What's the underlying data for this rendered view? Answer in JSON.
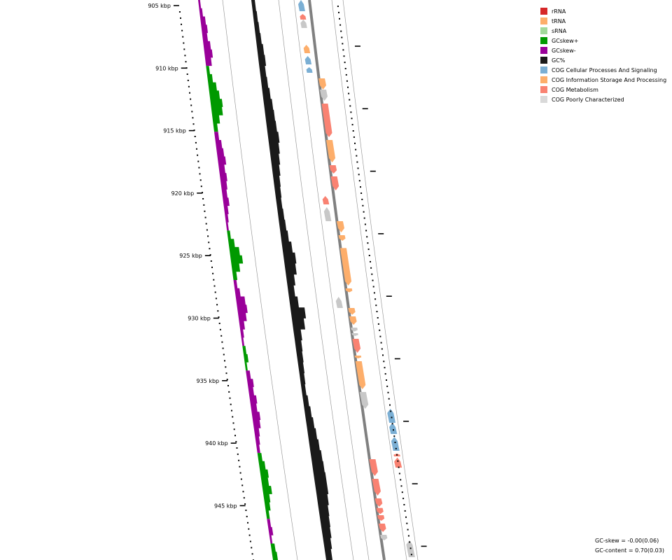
{
  "legend": [
    {
      "label": "rRNA",
      "color": "#d62728"
    },
    {
      "label": "tRNA",
      "color": "#fdae6b"
    },
    {
      "label": "sRNA",
      "color": "#a1d99b"
    },
    {
      "label": "GCskew+",
      "color": "#009900"
    },
    {
      "label": "GCskew-",
      "color": "#990099"
    },
    {
      "label": "GC%",
      "color": "#1a1a1a"
    },
    {
      "label": "COG Cellular Processes And Signaling",
      "color": "#7bafd4"
    },
    {
      "label": "COG Information Storage And Processing",
      "color": "#fdae6b"
    },
    {
      "label": "COG Metabolism",
      "color": "#f98272"
    },
    {
      "label": "COG Poorly Characterized",
      "color": "#d9d9d9"
    }
  ],
  "ticks": [
    "905 kbp",
    "910 kbp",
    "915 kbp",
    "920 kbp",
    "925 kbp",
    "930 kbp",
    "935 kbp",
    "940 kbp",
    "945 kbp"
  ],
  "stats": {
    "gc_skew": "GC-skew = -0.00(0.06)",
    "gc_content": "GC-content = 0.70(0.03)"
  },
  "tracks": {
    "gc_skew_segments": [
      {
        "sign": "-",
        "values": [
          0.2,
          0.3,
          0.5,
          0.6,
          0.5,
          0.7,
          0.8,
          0.6
        ]
      },
      {
        "sign": "+",
        "values": [
          0.3,
          0.5,
          0.8,
          1.0,
          1.2,
          1.1,
          0.7,
          0.4
        ]
      },
      {
        "sign": "-",
        "values": [
          0.4,
          0.6,
          0.7,
          0.8,
          0.6,
          0.7,
          0.6,
          0.5,
          0.6,
          0.4,
          0.3,
          0.2
        ]
      },
      {
        "sign": "+",
        "values": [
          0.3,
          0.6,
          1.0,
          1.2,
          0.8,
          0.4
        ]
      },
      {
        "sign": "-",
        "values": [
          0.3,
          0.5,
          0.9,
          1.0,
          0.8,
          0.5,
          0.3,
          0.2
        ]
      },
      {
        "sign": "+",
        "values": [
          0.3,
          0.4,
          0.2
        ]
      },
      {
        "sign": "-",
        "values": [
          0.4,
          0.6,
          0.5,
          0.7,
          0.6,
          0.8,
          0.7,
          0.5,
          0.4,
          0.3
        ]
      },
      {
        "sign": "+",
        "values": [
          0.4,
          0.6,
          0.8,
          0.7,
          0.9,
          0.6,
          0.5,
          0.3
        ]
      },
      {
        "sign": "-",
        "values": [
          0.3,
          0.4,
          0.2
        ]
      },
      {
        "sign": "+",
        "values": [
          0.4,
          0.5
        ]
      }
    ],
    "gc_content_values": [
      0.5,
      0.6,
      0.7,
      0.8,
      1.0,
      1.1,
      0.9,
      1.0,
      1.2,
      1.4,
      1.5,
      1.6,
      1.8,
      1.6,
      1.4,
      1.2,
      1.0,
      0.9,
      0.8,
      0.9,
      1.0,
      1.2,
      1.6,
      2.0,
      1.8,
      1.3,
      1.0,
      1.4,
      2.4,
      2.0,
      1.2,
      1.0,
      0.9,
      0.8,
      0.7,
      0.6,
      0.8,
      1.0,
      1.2,
      1.4,
      1.6,
      1.8,
      1.9,
      2.0,
      2.0,
      1.8,
      1.6,
      1.5,
      1.4,
      1.2,
      1.0
    ],
    "features_inner": [
      {
        "start": 0.0,
        "end": 0.02,
        "category": "COG Cellular Processes And Signaling"
      },
      {
        "start": 0.025,
        "end": 0.035,
        "category": "COG Metabolism"
      },
      {
        "start": 0.035,
        "end": 0.05,
        "category": "COG Poorly Characterized"
      },
      {
        "start": 0.08,
        "end": 0.095,
        "category": "COG Information Storage And Processing"
      },
      {
        "start": 0.1,
        "end": 0.115,
        "category": "COG Cellular Processes And Signaling"
      },
      {
        "start": 0.12,
        "end": 0.13,
        "category": "COG Cellular Processes And Signaling"
      },
      {
        "start": 0.35,
        "end": 0.365,
        "category": "COG Metabolism"
      },
      {
        "start": 0.37,
        "end": 0.395,
        "category": "COG Poorly Characterized"
      },
      {
        "start": 0.53,
        "end": 0.55,
        "category": "COG Poorly Characterized"
      }
    ],
    "features_outer": [
      {
        "start": 0.14,
        "end": 0.16,
        "category": "COG Information Storage And Processing"
      },
      {
        "start": 0.16,
        "end": 0.18,
        "category": "COG Poorly Characterized"
      },
      {
        "start": 0.185,
        "end": 0.245,
        "category": "COG Metabolism"
      },
      {
        "start": 0.25,
        "end": 0.29,
        "category": "COG Information Storage And Processing"
      },
      {
        "start": 0.295,
        "end": 0.31,
        "category": "COG Metabolism"
      },
      {
        "start": 0.315,
        "end": 0.34,
        "category": "COG Metabolism"
      },
      {
        "start": 0.395,
        "end": 0.415,
        "category": "COG Information Storage And Processing"
      },
      {
        "start": 0.42,
        "end": 0.43,
        "category": "COG Information Storage And Processing"
      },
      {
        "start": 0.443,
        "end": 0.51,
        "category": "COG Information Storage And Processing"
      },
      {
        "start": 0.515,
        "end": 0.522,
        "category": "COG Information Storage And Processing"
      },
      {
        "start": 0.55,
        "end": 0.562,
        "category": "COG Information Storage And Processing"
      },
      {
        "start": 0.565,
        "end": 0.58,
        "category": "COG Information Storage And Processing"
      },
      {
        "start": 0.585,
        "end": 0.592,
        "category": "COG Poorly Characterized"
      },
      {
        "start": 0.595,
        "end": 0.6,
        "category": "COG Poorly Characterized"
      },
      {
        "start": 0.605,
        "end": 0.63,
        "category": "COG Metabolism"
      },
      {
        "start": 0.635,
        "end": 0.64,
        "category": "COG Information Storage And Processing"
      },
      {
        "start": 0.645,
        "end": 0.695,
        "category": "COG Information Storage And Processing"
      },
      {
        "start": 0.7,
        "end": 0.73,
        "category": "COG Poorly Characterized"
      },
      {
        "start": 0.82,
        "end": 0.85,
        "category": "COG Metabolism"
      },
      {
        "start": 0.855,
        "end": 0.885,
        "category": "COG Metabolism"
      },
      {
        "start": 0.89,
        "end": 0.905,
        "category": "COG Metabolism"
      },
      {
        "start": 0.907,
        "end": 0.918,
        "category": "COG Metabolism"
      },
      {
        "start": 0.92,
        "end": 0.93,
        "category": "COG Metabolism"
      },
      {
        "start": 0.935,
        "end": 0.95,
        "category": "COG Metabolism"
      },
      {
        "start": 0.955,
        "end": 0.965,
        "category": "COG Poorly Characterized"
      }
    ],
    "features_inner2": [
      {
        "start": 0.73,
        "end": 0.755,
        "category": "COG Cellular Processes And Signaling"
      },
      {
        "start": 0.755,
        "end": 0.775,
        "category": "COG Cellular Processes And Signaling"
      },
      {
        "start": 0.78,
        "end": 0.805,
        "category": "COG Cellular Processes And Signaling"
      },
      {
        "start": 0.81,
        "end": 0.815,
        "category": "COG Metabolism"
      },
      {
        "start": 0.817,
        "end": 0.835,
        "category": "COG Metabolism"
      },
      {
        "start": 0.965,
        "end": 0.995,
        "category": "COG Poorly Characterized"
      }
    ]
  }
}
